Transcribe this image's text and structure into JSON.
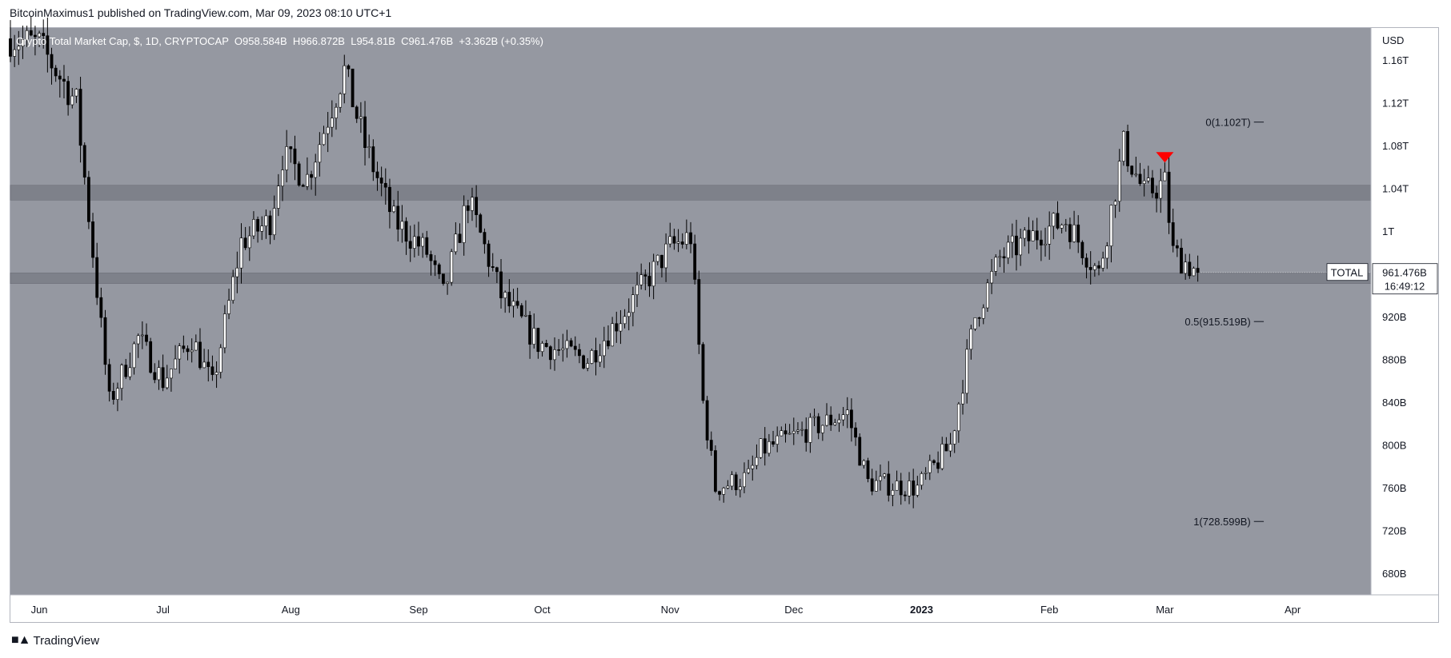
{
  "header": {
    "publisher_line": "BitcoinMaximus1 published on TradingView.com, Mar 09, 2023 08:10 UTC+1"
  },
  "footer": {
    "brand": "TradingView"
  },
  "legend": {
    "symbol": "Crypto Total Market Cap, $, 1D, CRYPTOCAP",
    "open_label": "O",
    "open": "958.584B",
    "high_label": "H",
    "high": "966.872B",
    "low_label": "L",
    "low": "954.81B",
    "close_label": "C",
    "close": "961.476B",
    "change": "+3.362B (+0.35%)"
  },
  "price_tag": {
    "label": "TOTAL",
    "value": "961.476B",
    "countdown": "16:49:12"
  },
  "colors": {
    "plot_bg": "#9598a1",
    "up": "#ffffff",
    "down": "#000000",
    "zone": "#7b7e87",
    "marker": "#ff0000"
  },
  "chart_data": {
    "type": "candlestick",
    "title": "Crypto Total Market Cap, $, 1D, CRYPTOCAP",
    "currency": "USD",
    "y_unit": "USD",
    "ylim": [
      660,
      1190
    ],
    "y_ticks": [
      {
        "v": 1160,
        "label": "1.16T"
      },
      {
        "v": 1120,
        "label": "1.12T"
      },
      {
        "v": 1080,
        "label": "1.08T"
      },
      {
        "v": 1040,
        "label": "1.04T"
      },
      {
        "v": 1000,
        "label": "1T"
      },
      {
        "v": 920,
        "label": "920B"
      },
      {
        "v": 880,
        "label": "880B"
      },
      {
        "v": 840,
        "label": "840B"
      },
      {
        "v": 800,
        "label": "800B"
      },
      {
        "v": 760,
        "label": "760B"
      },
      {
        "v": 720,
        "label": "720B"
      },
      {
        "v": 680,
        "label": "680B"
      }
    ],
    "x_ticks": [
      {
        "date": "2022-06-01",
        "label": "Jun"
      },
      {
        "date": "2022-07-01",
        "label": "Jul"
      },
      {
        "date": "2022-08-01",
        "label": "Aug"
      },
      {
        "date": "2022-09-01",
        "label": "Sep"
      },
      {
        "date": "2022-10-01",
        "label": "Oct"
      },
      {
        "date": "2022-11-01",
        "label": "Nov"
      },
      {
        "date": "2022-12-01",
        "label": "Dec"
      },
      {
        "date": "2023-01-01",
        "label": "2023"
      },
      {
        "date": "2023-02-01",
        "label": "Feb"
      },
      {
        "date": "2023-03-01",
        "label": "Mar"
      },
      {
        "date": "2023-04-01",
        "label": "Apr"
      }
    ],
    "x_range": [
      "2022-05-25",
      "2023-04-20"
    ],
    "zones": [
      {
        "name": "resistance",
        "low": 1029,
        "high": 1043
      },
      {
        "name": "support",
        "low": 951,
        "high": 961
      }
    ],
    "fib_levels": [
      {
        "ratio": "0",
        "label": "0(1.102T)",
        "value": 1102
      },
      {
        "ratio": "0.5",
        "label": "0.5(915.519B)",
        "value": 915.519
      },
      {
        "ratio": "1",
        "label": "1(728.599B)",
        "value": 728.599
      }
    ],
    "fib_line": {
      "from": "2023-02-18",
      "to": "2023-03-25"
    },
    "markers": [
      {
        "type": "triangle-down",
        "date": "2023-03-01",
        "value": 1068
      }
    ],
    "last_close": 961.476,
    "anchors": [
      {
        "date": "2022-05-25",
        "close": 1180
      },
      {
        "date": "2022-06-01",
        "close": 1175
      },
      {
        "date": "2022-06-10",
        "close": 1120
      },
      {
        "date": "2022-06-18",
        "close": 840
      },
      {
        "date": "2022-06-25",
        "close": 900
      },
      {
        "date": "2022-07-01",
        "close": 860
      },
      {
        "date": "2022-07-08",
        "close": 900
      },
      {
        "date": "2022-07-13",
        "close": 855
      },
      {
        "date": "2022-07-20",
        "close": 990
      },
      {
        "date": "2022-07-27",
        "close": 1010
      },
      {
        "date": "2022-07-30",
        "close": 1070
      },
      {
        "date": "2022-08-05",
        "close": 1050
      },
      {
        "date": "2022-08-14",
        "close": 1150
      },
      {
        "date": "2022-08-19",
        "close": 1080
      },
      {
        "date": "2022-08-26",
        "close": 1010
      },
      {
        "date": "2022-09-03",
        "close": 980
      },
      {
        "date": "2022-09-07",
        "close": 940
      },
      {
        "date": "2022-09-13",
        "close": 1030
      },
      {
        "date": "2022-09-21",
        "close": 940
      },
      {
        "date": "2022-09-30",
        "close": 895
      },
      {
        "date": "2022-10-12",
        "close": 880
      },
      {
        "date": "2022-10-21",
        "close": 925
      },
      {
        "date": "2022-11-01",
        "close": 985
      },
      {
        "date": "2022-11-06",
        "close": 995
      },
      {
        "date": "2022-11-09",
        "close": 840
      },
      {
        "date": "2022-11-12",
        "close": 760
      },
      {
        "date": "2022-11-20",
        "close": 770
      },
      {
        "date": "2022-11-23",
        "close": 795
      },
      {
        "date": "2022-12-05",
        "close": 815
      },
      {
        "date": "2022-12-14",
        "close": 830
      },
      {
        "date": "2022-12-19",
        "close": 765
      },
      {
        "date": "2022-12-31",
        "close": 760
      },
      {
        "date": "2023-01-08",
        "close": 800
      },
      {
        "date": "2023-01-14",
        "close": 920
      },
      {
        "date": "2023-01-20",
        "close": 975
      },
      {
        "date": "2023-01-30",
        "close": 1000
      },
      {
        "date": "2023-02-05",
        "close": 1010
      },
      {
        "date": "2023-02-13",
        "close": 960
      },
      {
        "date": "2023-02-19",
        "close": 1080
      },
      {
        "date": "2023-02-24",
        "close": 1035
      },
      {
        "date": "2023-03-01",
        "close": 1045
      },
      {
        "date": "2023-03-03",
        "close": 980
      },
      {
        "date": "2023-03-09",
        "close": 961.476
      }
    ]
  }
}
